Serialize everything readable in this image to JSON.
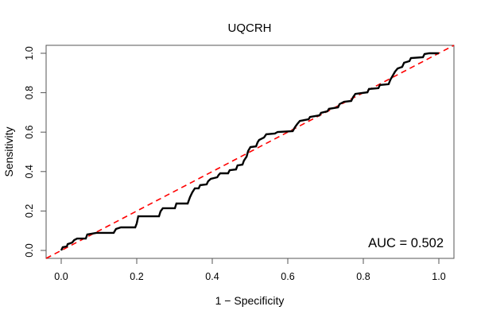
{
  "chart_data": {
    "type": "line",
    "title": "UQCRH",
    "xlabel": "1 − Specificity",
    "ylabel": "Sensitivity",
    "annotation": "AUC = 0.502",
    "auc": 0.502,
    "xlim": [
      0,
      1
    ],
    "ylim": [
      0,
      1
    ],
    "axis_expansion": 0.04,
    "grid": false,
    "legend": "none",
    "x_ticks": [
      0.0,
      0.2,
      0.4,
      0.6,
      0.8,
      1.0
    ],
    "y_ticks": [
      0.0,
      0.2,
      0.4,
      0.6,
      0.8,
      1.0
    ],
    "x_tick_labels": [
      "0.0",
      "0.2",
      "0.4",
      "0.6",
      "0.8",
      "1.0"
    ],
    "y_tick_labels": [
      "0.0",
      "0.2",
      "0.4",
      "0.6",
      "0.8",
      "1.0"
    ],
    "colors": {
      "roc_curve": "#000000",
      "reference_line": "#ff0000",
      "axis": "#555555",
      "text": "#000000"
    },
    "series": [
      {
        "name": "ROC curve",
        "style": "solid",
        "color": "#000000",
        "points": [
          [
            0.0,
            0.0
          ],
          [
            0.004,
            0.016
          ],
          [
            0.015,
            0.02
          ],
          [
            0.017,
            0.032
          ],
          [
            0.029,
            0.04
          ],
          [
            0.034,
            0.052
          ],
          [
            0.042,
            0.06
          ],
          [
            0.065,
            0.06
          ],
          [
            0.069,
            0.081
          ],
          [
            0.093,
            0.089
          ],
          [
            0.139,
            0.089
          ],
          [
            0.145,
            0.109
          ],
          [
            0.158,
            0.117
          ],
          [
            0.196,
            0.117
          ],
          [
            0.2,
            0.137
          ],
          [
            0.204,
            0.173
          ],
          [
            0.259,
            0.173
          ],
          [
            0.263,
            0.198
          ],
          [
            0.269,
            0.214
          ],
          [
            0.301,
            0.214
          ],
          [
            0.305,
            0.238
          ],
          [
            0.335,
            0.238
          ],
          [
            0.341,
            0.27
          ],
          [
            0.347,
            0.294
          ],
          [
            0.354,
            0.315
          ],
          [
            0.364,
            0.315
          ],
          [
            0.368,
            0.331
          ],
          [
            0.385,
            0.335
          ],
          [
            0.389,
            0.351
          ],
          [
            0.396,
            0.363
          ],
          [
            0.413,
            0.371
          ],
          [
            0.417,
            0.383
          ],
          [
            0.421,
            0.391
          ],
          [
            0.442,
            0.391
          ],
          [
            0.446,
            0.407
          ],
          [
            0.463,
            0.411
          ],
          [
            0.467,
            0.431
          ],
          [
            0.48,
            0.435
          ],
          [
            0.484,
            0.456
          ],
          [
            0.491,
            0.476
          ],
          [
            0.495,
            0.504
          ],
          [
            0.501,
            0.524
          ],
          [
            0.516,
            0.528
          ],
          [
            0.52,
            0.548
          ],
          [
            0.524,
            0.56
          ],
          [
            0.537,
            0.573
          ],
          [
            0.543,
            0.589
          ],
          [
            0.566,
            0.593
          ],
          [
            0.573,
            0.601
          ],
          [
            0.613,
            0.605
          ],
          [
            0.619,
            0.625
          ],
          [
            0.625,
            0.641
          ],
          [
            0.632,
            0.657
          ],
          [
            0.655,
            0.665
          ],
          [
            0.659,
            0.677
          ],
          [
            0.684,
            0.685
          ],
          [
            0.688,
            0.698
          ],
          [
            0.705,
            0.706
          ],
          [
            0.709,
            0.718
          ],
          [
            0.733,
            0.726
          ],
          [
            0.737,
            0.742
          ],
          [
            0.749,
            0.754
          ],
          [
            0.768,
            0.758
          ],
          [
            0.773,
            0.778
          ],
          [
            0.779,
            0.794
          ],
          [
            0.811,
            0.802
          ],
          [
            0.815,
            0.819
          ],
          [
            0.84,
            0.823
          ],
          [
            0.844,
            0.839
          ],
          [
            0.867,
            0.843
          ],
          [
            0.872,
            0.867
          ],
          [
            0.878,
            0.887
          ],
          [
            0.884,
            0.907
          ],
          [
            0.891,
            0.923
          ],
          [
            0.903,
            0.931
          ],
          [
            0.908,
            0.952
          ],
          [
            0.922,
            0.96
          ],
          [
            0.926,
            0.976
          ],
          [
            0.958,
            0.98
          ],
          [
            0.962,
            0.996
          ],
          [
            0.975,
            1.0
          ],
          [
            0.994,
            1.0
          ],
          [
            1.0,
            1.0
          ]
        ]
      },
      {
        "name": "Reference diagonal",
        "style": "dashed",
        "color": "#ff0000",
        "points": [
          [
            0,
            0
          ],
          [
            1,
            1
          ]
        ]
      }
    ]
  }
}
